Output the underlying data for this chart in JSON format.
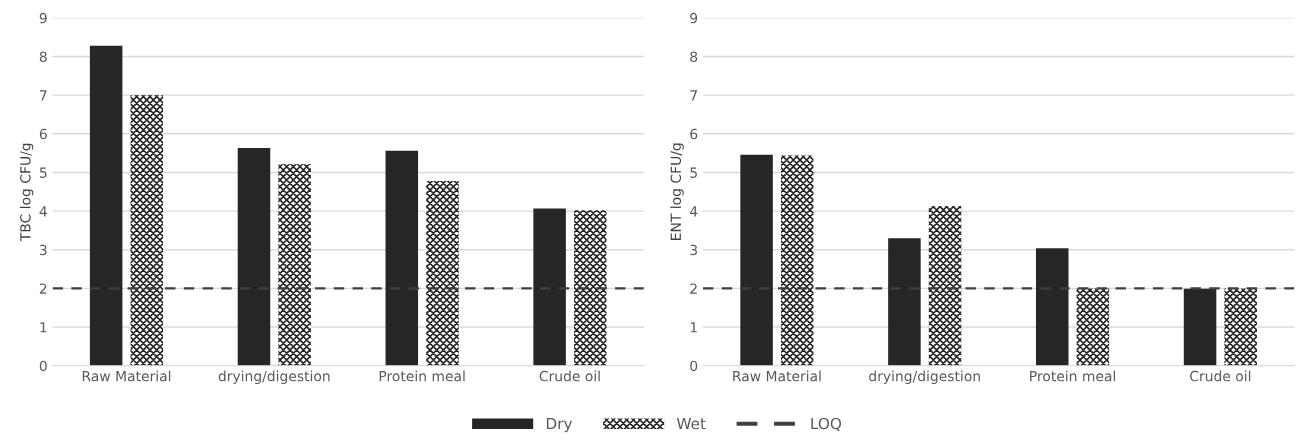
{
  "chart_data": [
    {
      "type": "bar",
      "ylabel": "TBC log CFU/g",
      "categories": [
        "Raw Material",
        "drying/digestion",
        "Protein meal",
        "Crude oil"
      ],
      "series": [
        {
          "name": "Dry",
          "color": "#262626",
          "values": [
            8.28,
            5.63,
            5.56,
            4.07
          ]
        },
        {
          "name": "Wet",
          "color": "#262626",
          "values": [
            7.0,
            5.21,
            4.78,
            4.02
          ]
        }
      ],
      "ylim": [
        0,
        9
      ],
      "yticks": [
        0,
        1,
        2,
        3,
        4,
        5,
        6,
        7,
        8,
        9
      ],
      "grid": "y",
      "legend": "bottom",
      "ref_lines": [
        {
          "axis": "y",
          "value": 2,
          "label": "LOQ",
          "color": "#404040",
          "line_style": "dashed"
        }
      ]
    },
    {
      "type": "bar",
      "ylabel": "ENT log CFU/g",
      "categories": [
        "Raw Material",
        "drying/digestion",
        "Protein meal",
        "Crude oil"
      ],
      "series": [
        {
          "color": "#262626",
          "values": [
            5.46,
            3.3,
            3.04,
            1.99
          ]
        },
        {
          "color": "#262626",
          "values": [
            5.44,
            4.13,
            2.0,
            2.0
          ]
        }
      ],
      "ylim": [
        0,
        9
      ],
      "yticks": [
        0,
        1,
        2,
        3,
        4,
        5,
        6,
        7,
        8,
        9
      ],
      "grid": "y",
      "ref_lines": [
        {
          "axis": "y",
          "value": 2,
          "color": "#404040",
          "line_style": "dashed"
        }
      ]
    }
  ]
}
